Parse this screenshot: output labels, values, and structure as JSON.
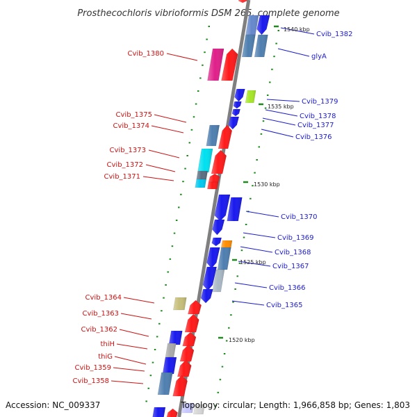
{
  "title": "Prosthecochloris vibrioformis DSM 265, complete genome",
  "footer": {
    "accession": "Accession: NC_009337",
    "topology": "Topology: circular; Length: 1,966,858 bp; Genes: 1,803"
  },
  "colors": {
    "backbone": "#7f7f7f",
    "left_label": "#cc1111",
    "right_label": "#1a1acc",
    "tick": "#1e8a1e"
  },
  "kbp_labels": [
    "1540 kbp",
    "1535 kbp",
    "1530 kbp",
    "1525 kbp",
    "1520 kbp"
  ],
  "left_genes": [
    "Cvib_1380",
    "Cvib_1375",
    "Cvib_1374",
    "Cvib_1373",
    "Cvib_1372",
    "Cvib_1371",
    "Cvib_1364",
    "Cvib_1363",
    "Cvib_1362",
    "thiH",
    "thiG",
    "Cvib_1359",
    "Cvib_1358"
  ],
  "right_genes": [
    "Cvib_1382",
    "glyA",
    "Cvib_1379",
    "Cvib_1378",
    "Cvib_1377",
    "Cvib_1376",
    "Cvib_1370",
    "Cvib_1369",
    "Cvib_1368",
    "Cvib_1367",
    "Cvib_1366",
    "Cvib_1365"
  ]
}
